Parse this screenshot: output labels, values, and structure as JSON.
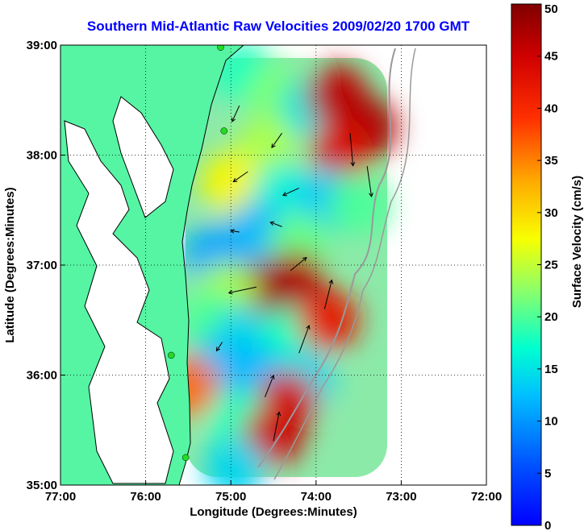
{
  "chart_data": {
    "type": "heatmap",
    "title": "Southern Mid-Atlantic Raw Velocities 2009/02/20 1700 GMT",
    "xlabel": "Longitude (Degrees:Minutes)",
    "ylabel": "Latitude (Degrees:Minutes)",
    "colorbar_label": "Surface Velocity (cm/s)",
    "xlim": [
      -77,
      -72
    ],
    "ylim": [
      35,
      39
    ],
    "x_ticks": [
      {
        "value": -77,
        "label": "77:00"
      },
      {
        "value": -76,
        "label": "76:00"
      },
      {
        "value": -75,
        "label": "75:00"
      },
      {
        "value": -74,
        "label": "74:00"
      },
      {
        "value": -73,
        "label": "73:00"
      },
      {
        "value": -72,
        "label": "72:00"
      }
    ],
    "y_ticks": [
      {
        "value": 35,
        "label": "35:00"
      },
      {
        "value": 36,
        "label": "36:00"
      },
      {
        "value": 37,
        "label": "37:00"
      },
      {
        "value": 38,
        "label": "38:00"
      },
      {
        "value": 39,
        "label": "39:00"
      }
    ],
    "colorbar": {
      "min": 0,
      "max": 50,
      "ticks": [
        "0",
        "5",
        "10",
        "15",
        "20",
        "25",
        "30",
        "35",
        "40",
        "45",
        "50"
      ],
      "colormap": "jet"
    },
    "grid": "dotted",
    "land_color": "#55f5a3",
    "coast_color": "#000000",
    "bathymetry_color": "#9a9a9a",
    "vector_color": "#000000",
    "station_color": "#22dd22",
    "stations": [
      {
        "lon": -75.12,
        "lat": 38.98
      },
      {
        "lon": -75.08,
        "lat": 38.22
      },
      {
        "lon": -75.7,
        "lat": 36.18
      },
      {
        "lon": -75.53,
        "lat": 35.25
      }
    ],
    "speed_field": [
      {
        "lon": -74.85,
        "lat": 38.75,
        "speed": 18
      },
      {
        "lon": -74.45,
        "lat": 38.55,
        "speed": 22
      },
      {
        "lon": -74.05,
        "lat": 38.45,
        "speed": 15
      },
      {
        "lon": -73.75,
        "lat": 38.55,
        "speed": 46
      },
      {
        "lon": -73.4,
        "lat": 38.25,
        "speed": 47
      },
      {
        "lon": -73.7,
        "lat": 38.05,
        "speed": 44
      },
      {
        "lon": -74.6,
        "lat": 38.05,
        "speed": 24
      },
      {
        "lon": -75.0,
        "lat": 37.75,
        "speed": 28
      },
      {
        "lon": -74.4,
        "lat": 37.65,
        "speed": 16
      },
      {
        "lon": -73.85,
        "lat": 37.6,
        "speed": 13
      },
      {
        "lon": -73.5,
        "lat": 37.55,
        "speed": 20
      },
      {
        "lon": -74.7,
        "lat": 37.3,
        "speed": 12
      },
      {
        "lon": -75.2,
        "lat": 37.1,
        "speed": 11
      },
      {
        "lon": -74.2,
        "lat": 37.2,
        "speed": 21
      },
      {
        "lon": -74.25,
        "lat": 36.85,
        "speed": 47
      },
      {
        "lon": -74.65,
        "lat": 36.75,
        "speed": 48
      },
      {
        "lon": -75.05,
        "lat": 36.75,
        "speed": 24
      },
      {
        "lon": -75.25,
        "lat": 36.5,
        "speed": 20
      },
      {
        "lon": -74.85,
        "lat": 36.35,
        "speed": 14
      },
      {
        "lon": -74.3,
        "lat": 36.35,
        "speed": 18
      },
      {
        "lon": -73.85,
        "lat": 36.5,
        "speed": 42
      },
      {
        "lon": -75.2,
        "lat": 36.05,
        "speed": 12
      },
      {
        "lon": -74.7,
        "lat": 36.0,
        "speed": 12
      },
      {
        "lon": -74.15,
        "lat": 35.95,
        "speed": 14
      },
      {
        "lon": -74.35,
        "lat": 35.75,
        "speed": 44
      },
      {
        "lon": -75.5,
        "lat": 35.9,
        "speed": 36
      },
      {
        "lon": -74.9,
        "lat": 35.6,
        "speed": 18
      },
      {
        "lon": -74.5,
        "lat": 35.45,
        "speed": 45
      },
      {
        "lon": -74.95,
        "lat": 35.15,
        "speed": 14
      }
    ],
    "vectors": [
      {
        "lon": -74.9,
        "lat": 38.45,
        "u": -10,
        "v": -22
      },
      {
        "lon": -74.4,
        "lat": 38.2,
        "u": -14,
        "v": -20
      },
      {
        "lon": -74.8,
        "lat": 37.85,
        "u": -20,
        "v": -14
      },
      {
        "lon": -74.2,
        "lat": 37.7,
        "u": -22,
        "v": -10
      },
      {
        "lon": -73.6,
        "lat": 38.2,
        "u": 4,
        "v": -45
      },
      {
        "lon": -73.4,
        "lat": 37.9,
        "u": 6,
        "v": -42
      },
      {
        "lon": -74.9,
        "lat": 37.3,
        "u": -12,
        "v": 2
      },
      {
        "lon": -74.4,
        "lat": 37.35,
        "u": -16,
        "v": 6
      },
      {
        "lon": -74.3,
        "lat": 36.95,
        "u": 22,
        "v": 18
      },
      {
        "lon": -74.7,
        "lat": 36.8,
        "u": -38,
        "v": -8
      },
      {
        "lon": -73.9,
        "lat": 36.6,
        "u": 10,
        "v": 40
      },
      {
        "lon": -74.2,
        "lat": 36.2,
        "u": 14,
        "v": 38
      },
      {
        "lon": -75.1,
        "lat": 36.3,
        "u": -8,
        "v": -12
      },
      {
        "lon": -74.6,
        "lat": 35.8,
        "u": 12,
        "v": 30
      },
      {
        "lon": -74.5,
        "lat": 35.4,
        "u": 8,
        "v": 40
      }
    ]
  }
}
